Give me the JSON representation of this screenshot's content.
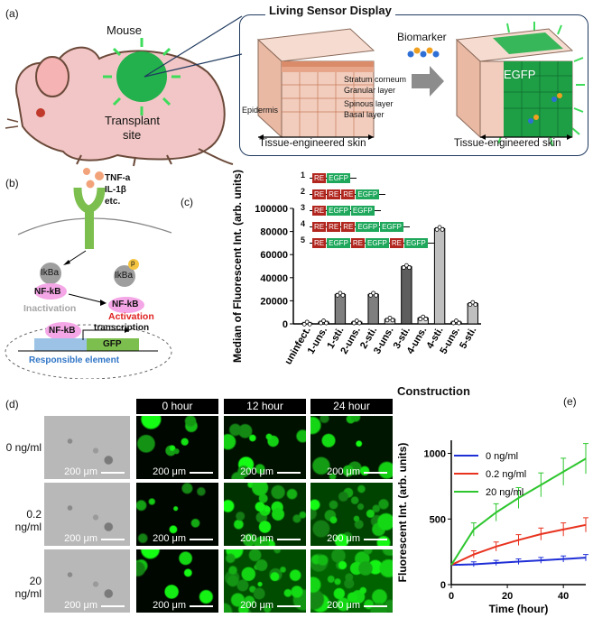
{
  "panel_a": {
    "label": "(a)",
    "mouse_label": "Mouse",
    "transplant_label_1": "Transplant",
    "transplant_label_2": "site",
    "title": "Living Sensor Display",
    "biomarker": "Biomarker",
    "egfp": "EGFP",
    "layers": [
      "Stratum corneum",
      "Granular  layer",
      "Spinous layer",
      "Basal layer"
    ],
    "epidermis": "Epidermis",
    "tissue_label": "Tissue-engineered skin",
    "colors": {
      "skin": "#f2cdbd",
      "green": "#22b14c",
      "frame": "#1f3a5f"
    }
  },
  "panel_b": {
    "label": "(b)",
    "ligands": [
      "TNF-a",
      "IL-1β",
      "etc."
    ],
    "ikba": "IkBa",
    "p": "p",
    "nfkb": "NF-kB",
    "inactivation": "Inactivation",
    "activation": "Activation",
    "transcription": "transcription",
    "gfp": "GFP",
    "responsible": "Responsible element"
  },
  "panel_c": {
    "label": "(c)",
    "construction": "Construction",
    "constructs": [
      {
        "num": "1",
        "parts": [
          "RE",
          "EGFP"
        ]
      },
      {
        "num": "2",
        "parts": [
          "RE",
          "RE",
          "RE",
          "EGFP"
        ]
      },
      {
        "num": "3",
        "parts": [
          "RE",
          "EGFP",
          "EGFP"
        ]
      },
      {
        "num": "4",
        "parts": [
          "RE",
          "RE",
          "RE",
          "EGFP",
          "EGFP"
        ]
      },
      {
        "num": "5",
        "parts": [
          "RE",
          "EGFP",
          "RE",
          "EGFP",
          "RE",
          "EGFP"
        ]
      }
    ],
    "chart_data": {
      "type": "bar",
      "ylabel": "Median of Fluorescent Int. (arb. units)",
      "xlabel": "",
      "categories": [
        "uninfect.",
        "1-uns.",
        "1-sti.",
        "2-uns.",
        "2-sti.",
        "3-uns.",
        "3-sti.",
        "4-uns.",
        "4-sti.",
        "5-uns.",
        "5-sti."
      ],
      "values": [
        500,
        1500,
        25500,
        1500,
        25500,
        4000,
        49500,
        5000,
        82500,
        1500,
        17500
      ],
      "bar_colors": [
        "#d9d9d9",
        "#d9d9d9",
        "#7f7f7f",
        "#d9d9d9",
        "#7f7f7f",
        "#d9d9d9",
        "#5e5e5e",
        "#d9d9d9",
        "#bfbfbf",
        "#d9d9d9",
        "#bfbfbf"
      ],
      "ylim": [
        0,
        100000
      ],
      "yticks": [
        "0",
        "20000",
        "40000",
        "60000",
        "80000",
        "100000"
      ],
      "ytick_values": [
        0,
        20000,
        40000,
        60000,
        80000,
        100000
      ]
    }
  },
  "panel_d": {
    "label": "(d)",
    "time_headers": [
      "0 hour",
      "12 hour",
      "24 hour"
    ],
    "rows": [
      "0 ng/ml",
      "0.2 ng/ml",
      "20 ng/ml"
    ],
    "scale": "200 μm"
  },
  "panel_e": {
    "label": "(e)",
    "chart_data": {
      "type": "line",
      "xlabel": "Time (hour)",
      "ylabel": "Fluorescent Int. (arb. units)",
      "xlim": [
        0,
        48
      ],
      "ylim": [
        0,
        1100
      ],
      "xticks": [
        "0",
        "20",
        "40"
      ],
      "xtick_values": [
        0,
        20,
        40
      ],
      "yticks": [
        "0",
        "500",
        "1000"
      ],
      "ytick_values": [
        0,
        500,
        1000
      ],
      "legend": "top-left",
      "series": [
        {
          "name": "0 ng/ml",
          "color": "#1f2fd6",
          "x": [
            0,
            8,
            16,
            24,
            32,
            40,
            48
          ],
          "y": [
            150,
            155,
            165,
            175,
            185,
            195,
            205
          ]
        },
        {
          "name": "0.2 ng/ml",
          "color": "#e8321e",
          "x": [
            0,
            8,
            16,
            24,
            32,
            40,
            48
          ],
          "y": [
            150,
            230,
            290,
            340,
            385,
            420,
            455
          ]
        },
        {
          "name": "20 ng/ml",
          "color": "#2ec62e",
          "x": [
            0,
            8,
            16,
            24,
            32,
            40,
            48
          ],
          "y": [
            150,
            420,
            550,
            660,
            760,
            860,
            960
          ]
        }
      ]
    }
  }
}
